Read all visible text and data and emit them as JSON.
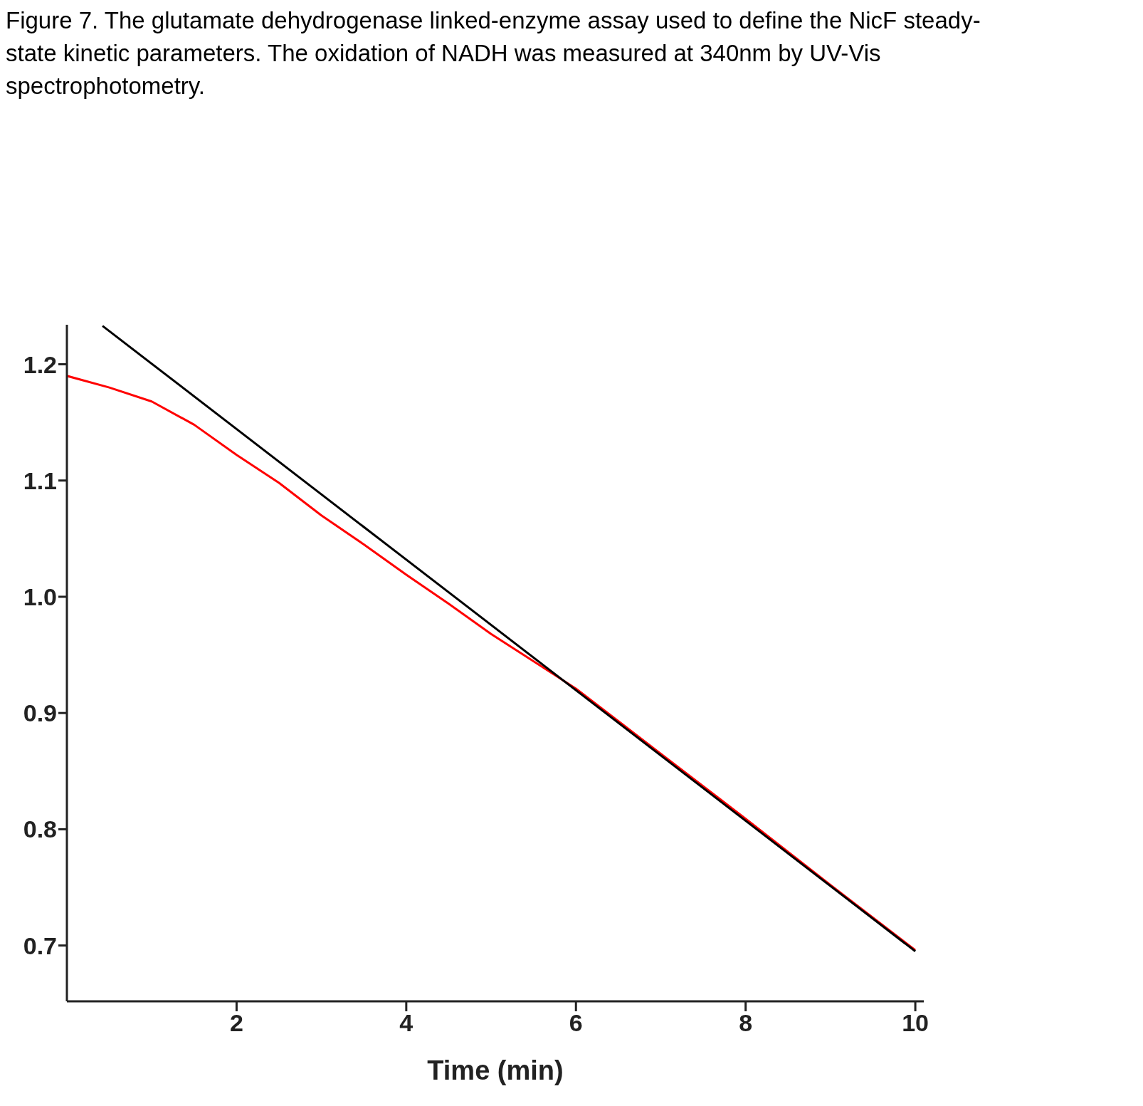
{
  "chart_data": {
    "type": "line",
    "title": "Figure 7. The glutamate dehydrogenase linked-enzyme assay used to define the NicF steady-state kinetic parameters. The oxidation of NADH was measured at 340nm by UV-Vis spectrophotometry.",
    "xlabel": "Time (min)",
    "xlim": [
      0,
      10.1
    ],
    "xticks": [
      2,
      4,
      6,
      8,
      10
    ],
    "ylim": [
      0.652,
      1.234
    ],
    "yticks": [
      0.7,
      0.8,
      0.9,
      {
        "value": 1,
        "label": "1.0"
      },
      1.1,
      1.2
    ],
    "grid": false,
    "legend": false,
    "marker": "none",
    "line_style": "solid",
    "series": [
      {
        "color": "#ff0000",
        "x": [
          0,
          0.5,
          1,
          1.5,
          2,
          2.5,
          3,
          3.5,
          4,
          4.5,
          5,
          6,
          7,
          8,
          9,
          10
        ],
        "values": [
          1.19,
          1.18,
          1.168,
          1.148,
          1.122,
          1.098,
          1.07,
          1.045,
          1.019,
          0.994,
          0.968,
          0.921,
          0.865,
          0.809,
          0.752,
          0.696
        ]
      },
      {
        "color": "#000000",
        "x": [
          0.42,
          10
        ],
        "values": [
          1.233,
          0.695
        ]
      }
    ]
  }
}
